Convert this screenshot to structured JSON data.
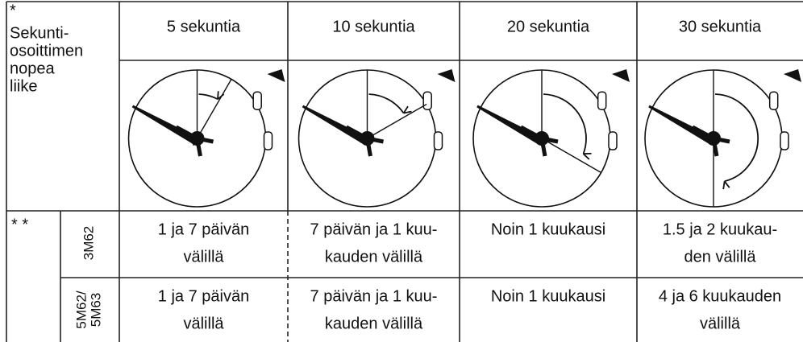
{
  "header": {
    "note": "*",
    "label": [
      "Sekunti-",
      "osoittimen",
      "nopea",
      "liike"
    ],
    "columns": [
      "5 sekuntia",
      "10 sekuntia",
      "20 sekuntia",
      "30 sekuntia"
    ]
  },
  "table": {
    "marker": "* *",
    "rows": [
      {
        "model": [
          "3M62"
        ],
        "cells": [
          [
            "1 ja 7 päivän",
            "välillä"
          ],
          [
            "7 päivän ja 1 kuu-",
            "kauden välillä"
          ],
          [
            "Noin 1 kuukausi"
          ],
          [
            "1.5 ja 2 kuukau-",
            "den välillä"
          ]
        ]
      },
      {
        "model": [
          "5M62/",
          "5M63"
        ],
        "cells": [
          [
            "1 ja 7 päivän",
            "välillä"
          ],
          [
            "7 päivän ja 1 kuu-",
            "kauden välillä"
          ],
          [
            "Noin 1 kuukausi"
          ],
          [
            "4 ja 6 kuukauden",
            "välillä"
          ]
        ]
      }
    ]
  }
}
